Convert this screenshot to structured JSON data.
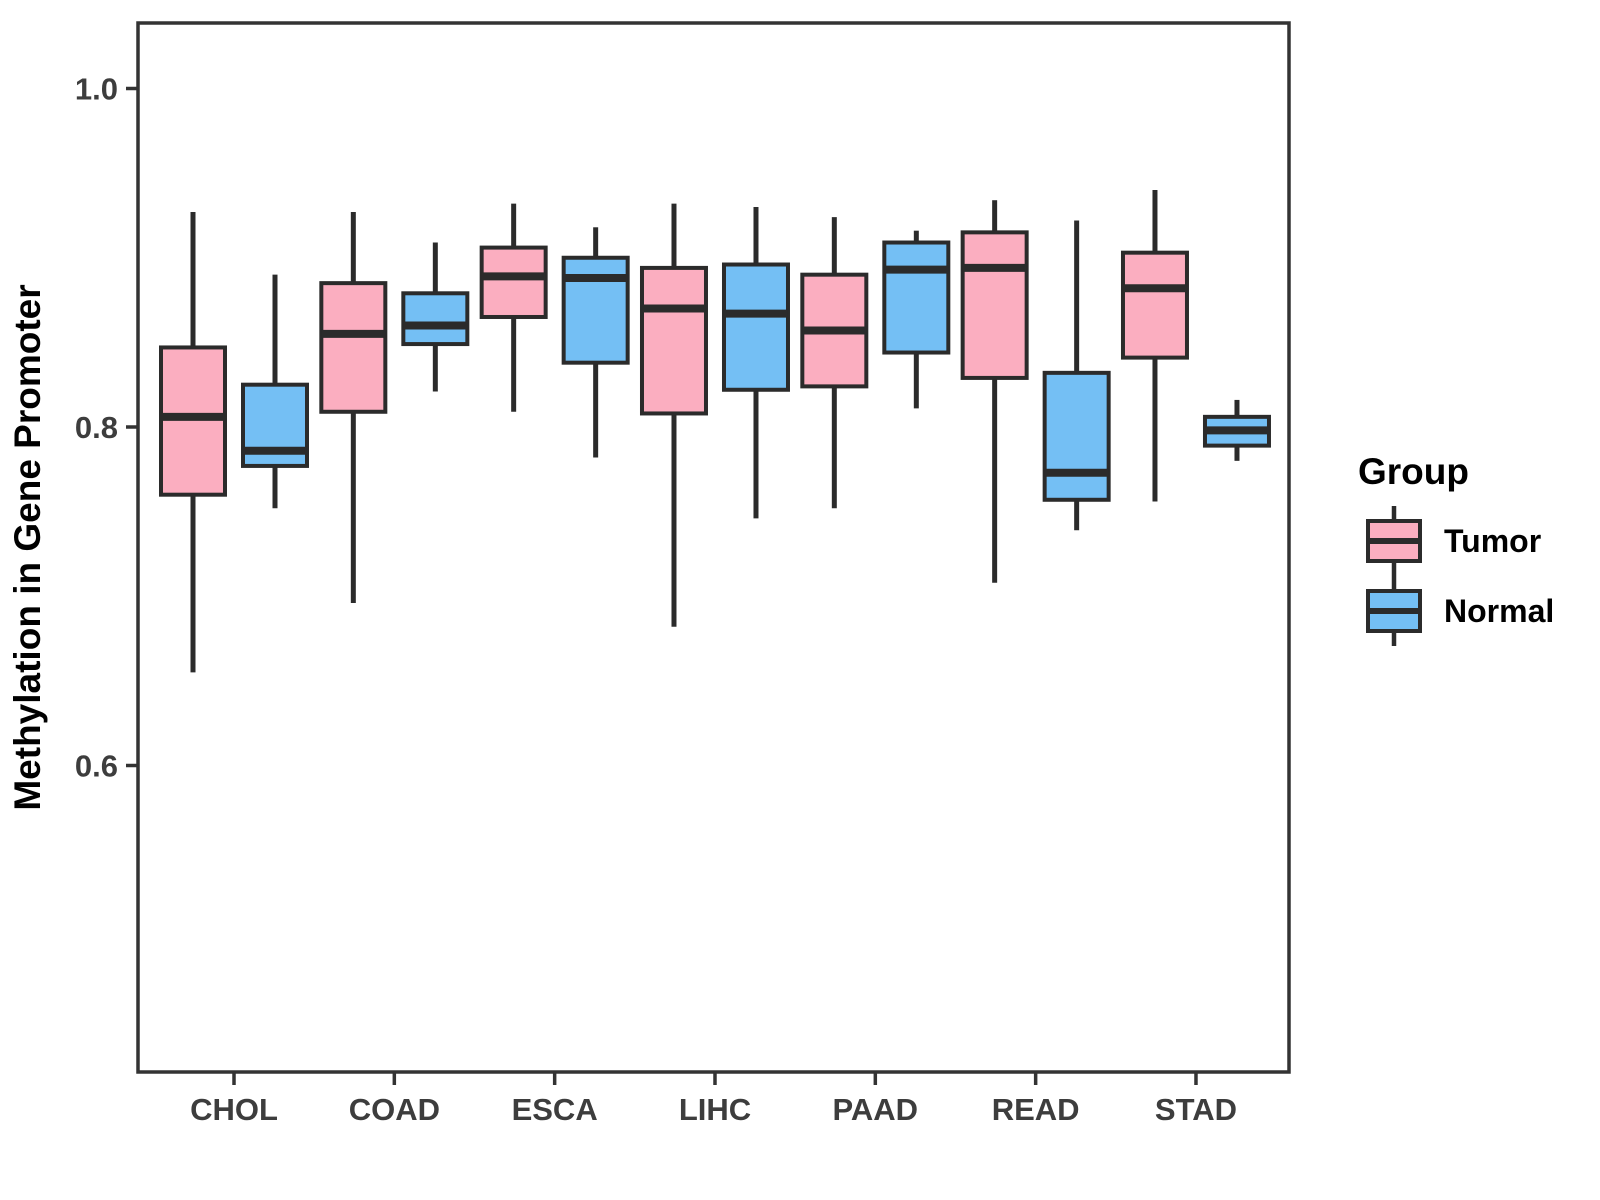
{
  "chart_data": {
    "type": "boxplot",
    "title": "",
    "xlabel": "",
    "ylabel": "Methylation in Gene Promoter",
    "categories": [
      "CHOL",
      "COAD",
      "ESCA",
      "LIHC",
      "PAAD",
      "READ",
      "STAD"
    ],
    "yticks": [
      "1.0",
      "0.8",
      "0.6"
    ],
    "ytick_values": [
      1.0,
      0.8,
      0.6
    ],
    "ylim": [
      0.42,
      1.04
    ],
    "grid": "off",
    "legend_title": "Group",
    "legend_position": "right",
    "colors": {
      "tumor_fill": "#FBAEC0",
      "normal_fill": "#74BFF4",
      "box_stroke": "#2B2B2B",
      "panel_border": "#333333",
      "tick_text": "#3D3D3D",
      "title_text": "#000000"
    },
    "series": [
      {
        "name": "Tumor",
        "color": "#FBAEC0",
        "boxes": [
          {
            "category": "CHOL",
            "min": 0.655,
            "q1": 0.76,
            "median": 0.806,
            "q3": 0.847,
            "max": 0.927
          },
          {
            "category": "COAD",
            "min": 0.696,
            "q1": 0.809,
            "median": 0.855,
            "q3": 0.885,
            "max": 0.927
          },
          {
            "category": "ESCA",
            "min": 0.809,
            "q1": 0.865,
            "median": 0.889,
            "q3": 0.906,
            "max": 0.932
          },
          {
            "category": "LIHC",
            "min": 0.682,
            "q1": 0.808,
            "median": 0.87,
            "q3": 0.894,
            "max": 0.932
          },
          {
            "category": "PAAD",
            "min": 0.752,
            "q1": 0.824,
            "median": 0.857,
            "q3": 0.89,
            "max": 0.924
          },
          {
            "category": "READ",
            "min": 0.708,
            "q1": 0.829,
            "median": 0.894,
            "q3": 0.915,
            "max": 0.934
          },
          {
            "category": "STAD",
            "min": 0.756,
            "q1": 0.841,
            "median": 0.882,
            "q3": 0.903,
            "max": 0.94
          }
        ]
      },
      {
        "name": "Normal",
        "color": "#74BFF4",
        "boxes": [
          {
            "category": "CHOL",
            "min": 0.752,
            "q1": 0.777,
            "median": 0.786,
            "q3": 0.825,
            "max": 0.89
          },
          {
            "category": "COAD",
            "min": 0.821,
            "q1": 0.849,
            "median": 0.86,
            "q3": 0.879,
            "max": 0.909
          },
          {
            "category": "ESCA",
            "min": 0.782,
            "q1": 0.838,
            "median": 0.888,
            "q3": 0.9,
            "max": 0.918
          },
          {
            "category": "LIHC",
            "min": 0.746,
            "q1": 0.822,
            "median": 0.867,
            "q3": 0.896,
            "max": 0.93
          },
          {
            "category": "PAAD",
            "min": 0.811,
            "q1": 0.844,
            "median": 0.893,
            "q3": 0.909,
            "max": 0.916
          },
          {
            "category": "READ",
            "min": 0.739,
            "q1": 0.757,
            "median": 0.773,
            "q3": 0.832,
            "max": 0.922
          },
          {
            "category": "STAD",
            "min": 0.78,
            "q1": 0.789,
            "median": 0.798,
            "q3": 0.806,
            "max": 0.816
          }
        ]
      }
    ]
  }
}
